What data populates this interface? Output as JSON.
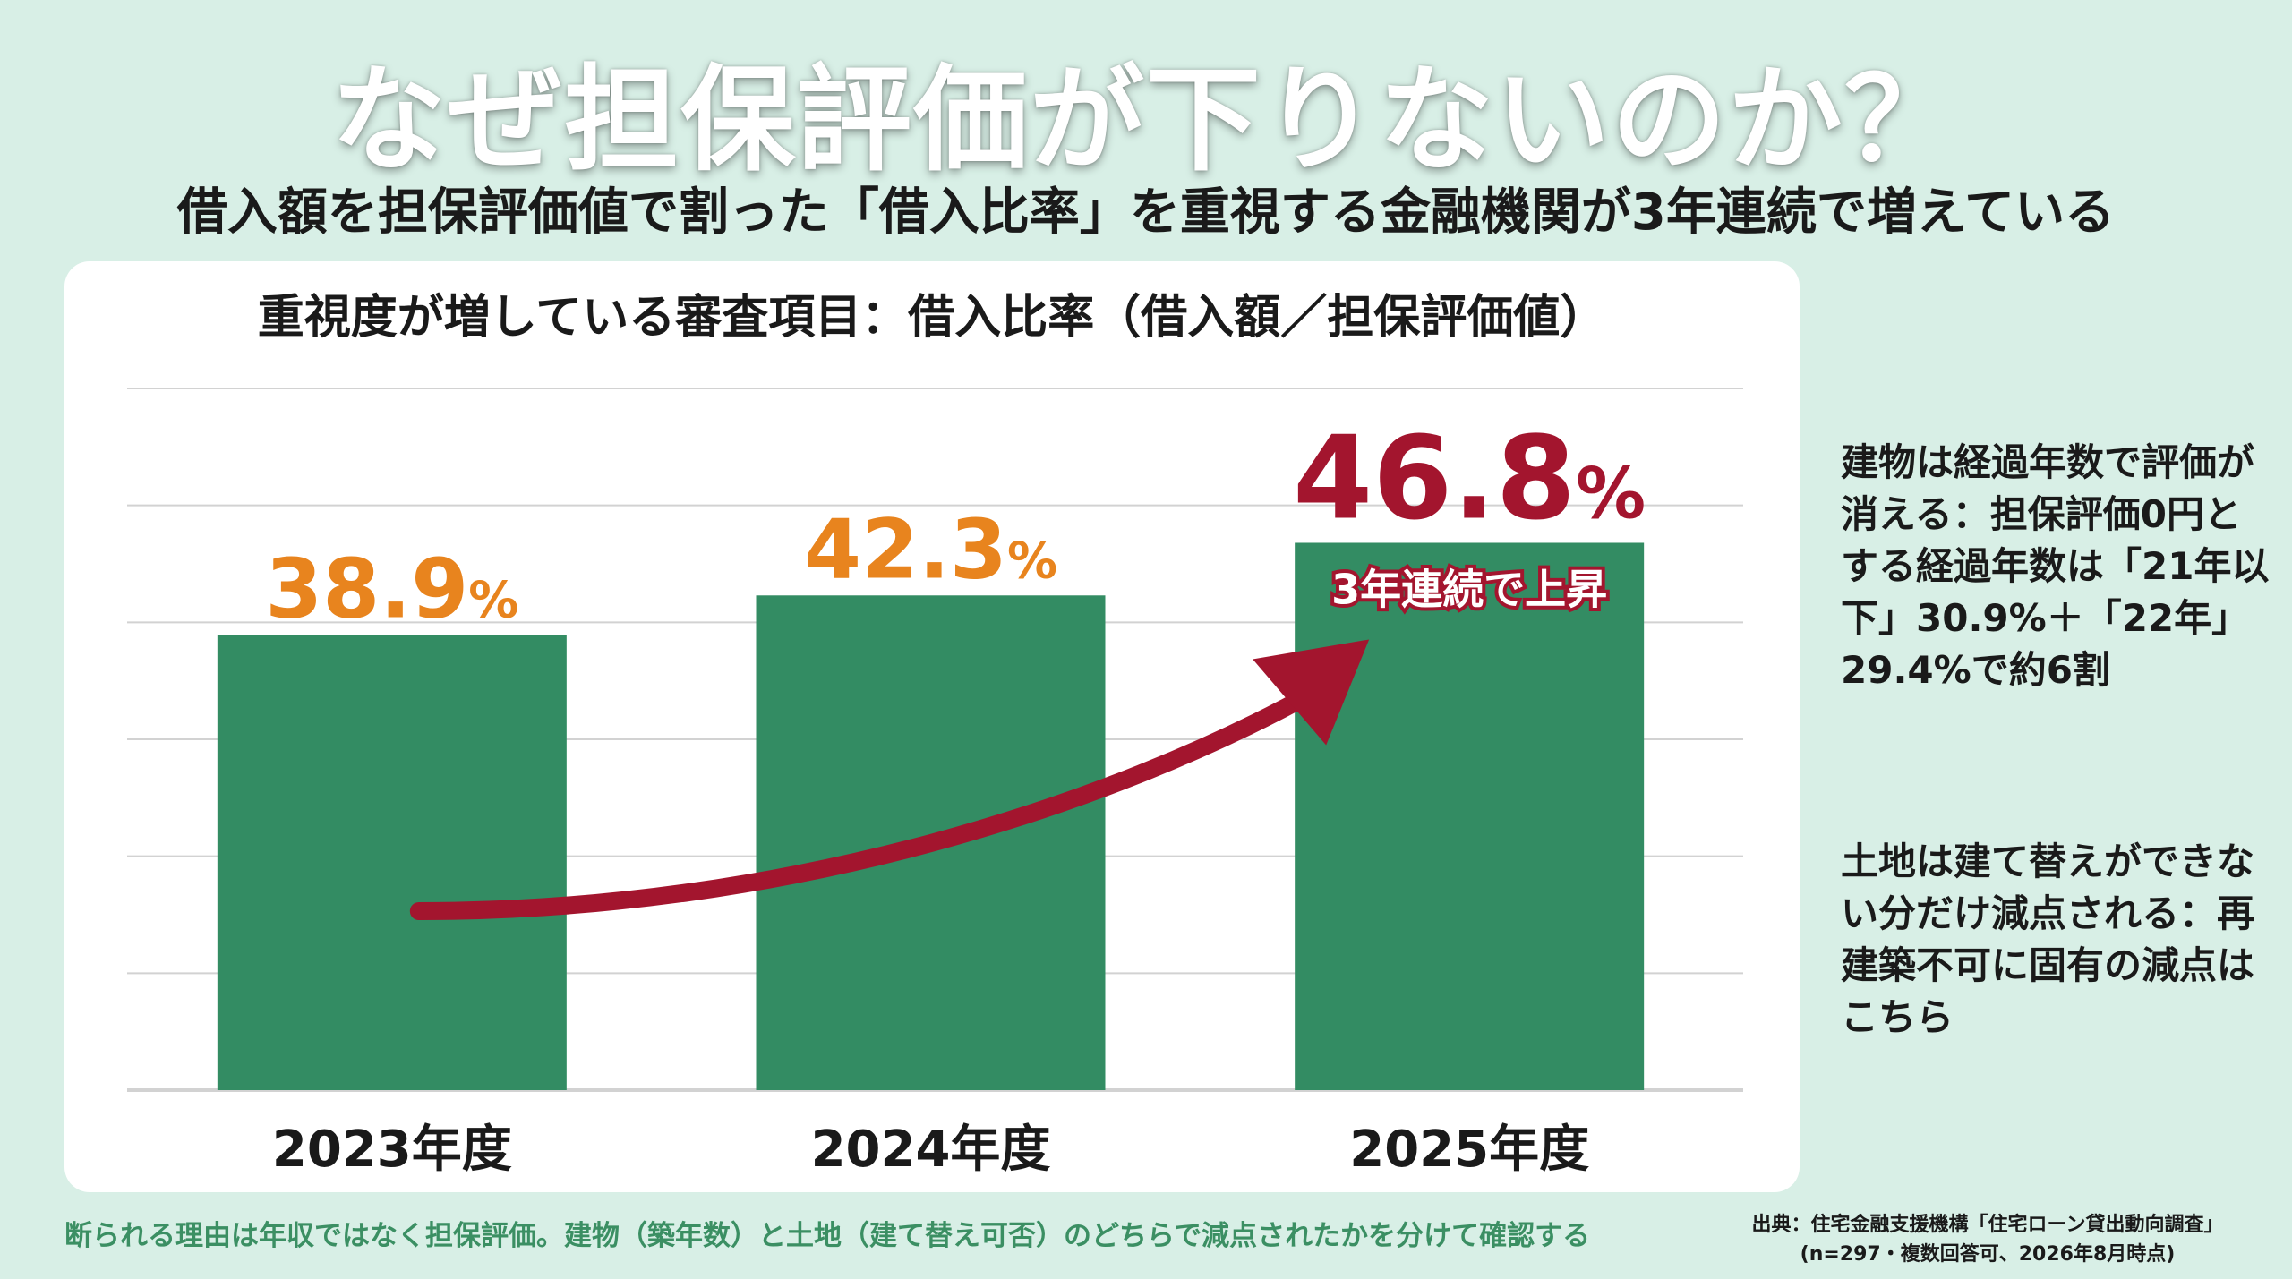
{
  "title": "なぜ担保評価が下りないのか？",
  "subtitle": "借入額を担保評価値で割った「借入比率」を重視する金融機関が3年連続で増えている",
  "side_notes": {
    "building": "建物は経過年数で評価が消える：担保評価0円とする経過年数は「21年以下」30.9%＋「22年」29.4%で約6割",
    "land": "土地は建て替えができない分だけ減点される：再建築不可に固有の減点はこちら"
  },
  "footer_note": "断られる理由は年収ではなく担保評価。建物（築年数）と土地（建て替え可否）のどちらで減点されたかを分けて確認する",
  "source": {
    "line1": "出典：住宅金融支援機構「住宅ローン貸出動向調査」",
    "line2": "(n=297・複数回答可、2026年8月時点)"
  },
  "chart_data": {
    "type": "bar",
    "title": "重視度が増している審査項目：借入比率（借入額／担保評価値）",
    "categories": [
      "2023年度",
      "2024年度",
      "2025年度"
    ],
    "values": [
      38.9,
      42.3,
      46.8
    ],
    "value_labels": [
      "38.9",
      "42.3",
      "46.8"
    ],
    "unit": "%",
    "ylim": [
      0,
      60
    ],
    "grid": true,
    "annotation": "3年連続で上昇",
    "colors": {
      "bar": "#338c63",
      "label_normal": "#e8841e",
      "label_highlight": "#a3152e",
      "arrow": "#a3152e",
      "grid": "#d2d2d2"
    }
  }
}
